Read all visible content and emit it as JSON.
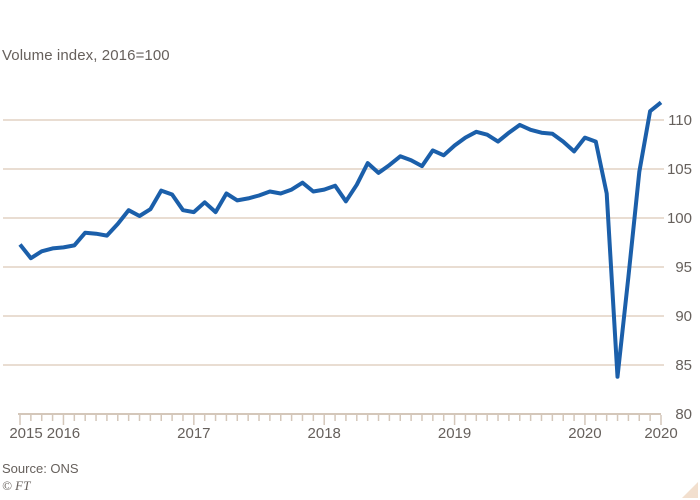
{
  "header": {
    "subtitle": "Volume index, 2016=100"
  },
  "footer": {
    "source": "Source: ONS",
    "credit": "© FT"
  },
  "colors": {
    "background": "#ffffff",
    "line": "#1b5faa",
    "gridline": "#e9ddd2",
    "axis": "#d4c7ba",
    "text": "#66605c",
    "corner_triangle": "#f2dfce"
  },
  "chart_data": {
    "type": "line",
    "title": "",
    "subtitle": "Volume index, 2016=100",
    "source": "Source: ONS",
    "grid": true,
    "legend": "none",
    "y_axis_side": "right",
    "ylim": [
      80,
      112.5
    ],
    "y_ticks": [
      80,
      85,
      90,
      95,
      100,
      105,
      110
    ],
    "y_gridlines": [
      85,
      90,
      95,
      100,
      105,
      110
    ],
    "x_tick_labels": [
      {
        "label": "2015",
        "index": 0
      },
      {
        "label": "2016",
        "index": 4
      },
      {
        "label": "2017",
        "index": 16
      },
      {
        "label": "2018",
        "index": 28
      },
      {
        "label": "2019",
        "index": 40
      },
      {
        "label": "2020",
        "index": 52
      },
      {
        "label": "2020",
        "index": 59
      }
    ],
    "x": [
      "2015-09",
      "2015-10",
      "2015-11",
      "2015-12",
      "2016-01",
      "2016-02",
      "2016-03",
      "2016-04",
      "2016-05",
      "2016-06",
      "2016-07",
      "2016-08",
      "2016-09",
      "2016-10",
      "2016-11",
      "2016-12",
      "2017-01",
      "2017-02",
      "2017-03",
      "2017-04",
      "2017-05",
      "2017-06",
      "2017-07",
      "2017-08",
      "2017-09",
      "2017-10",
      "2017-11",
      "2017-12",
      "2018-01",
      "2018-02",
      "2018-03",
      "2018-04",
      "2018-05",
      "2018-06",
      "2018-07",
      "2018-08",
      "2018-09",
      "2018-10",
      "2018-11",
      "2018-12",
      "2019-01",
      "2019-02",
      "2019-03",
      "2019-04",
      "2019-05",
      "2019-06",
      "2019-07",
      "2019-08",
      "2019-09",
      "2019-10",
      "2019-11",
      "2019-12",
      "2020-01",
      "2020-02",
      "2020-03",
      "2020-04",
      "2020-05",
      "2020-06",
      "2020-07",
      "2020-08"
    ],
    "series": [
      {
        "name": "Volume index, 2016=100",
        "values": [
          97.3,
          95.9,
          96.6,
          96.9,
          97.0,
          97.2,
          98.5,
          98.4,
          98.2,
          99.4,
          100.8,
          100.2,
          100.9,
          102.8,
          102.4,
          100.8,
          100.6,
          101.6,
          100.6,
          102.5,
          101.8,
          102.0,
          102.3,
          102.7,
          102.5,
          102.9,
          103.6,
          102.7,
          102.9,
          103.3,
          101.7,
          103.4,
          105.6,
          104.6,
          105.4,
          106.3,
          105.9,
          105.3,
          106.9,
          106.4,
          107.4,
          108.2,
          108.8,
          108.5,
          107.8,
          108.7,
          109.5,
          109.0,
          108.7,
          108.6,
          107.8,
          106.8,
          108.2,
          107.8,
          102.5,
          83.8,
          94.0,
          104.7,
          110.9,
          111.8
        ]
      }
    ]
  }
}
